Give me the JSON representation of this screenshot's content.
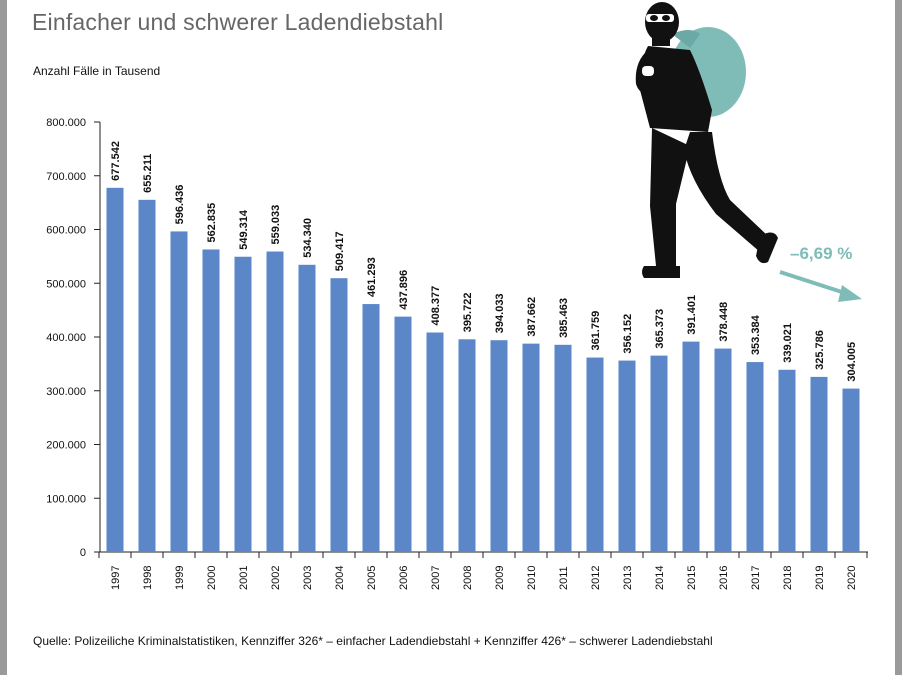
{
  "subtitle": "Einfacher und schwerer Ladendiebstahl",
  "source_note": "Quelle: Polizeiliche Kriminalstatistiken, Kennziffer 326* – einfacher Ladendiebstahl + Kennziffer 426* – schwerer Ladendiebstahl",
  "change_label": "–6,69 %",
  "colors": {
    "bar": "#5b87c9",
    "accent": "#7fbcb8",
    "thief": "#111111",
    "frame": "#9a9a9a"
  },
  "icons": {
    "illustration": "thief-with-sack-icon",
    "trend": "trend-arrow-icon"
  },
  "chart_data": {
    "type": "bar",
    "title": "Einfacher und schwerer Ladendiebstahl",
    "ylabel": "Anzahl Fälle in Tausend",
    "xlabel": "",
    "ylim": [
      0,
      800000
    ],
    "yticks": [
      0,
      100000,
      200000,
      300000,
      400000,
      500000,
      600000,
      700000,
      800000
    ],
    "ytick_labels": [
      "0",
      "100.000",
      "200.000",
      "300.000",
      "400.000",
      "500.000",
      "600.000",
      "700.000",
      "800.000"
    ],
    "categories": [
      "1997",
      "1998",
      "1999",
      "2000",
      "2001",
      "2002",
      "2003",
      "2004",
      "2005",
      "2006",
      "2007",
      "2008",
      "2009",
      "2010",
      "2011",
      "2012",
      "2013",
      "2014",
      "2015",
      "2016",
      "2017",
      "2018",
      "2019",
      "2020"
    ],
    "values": [
      677542,
      655211,
      596436,
      562835,
      549314,
      559033,
      534340,
      509417,
      461293,
      437896,
      408377,
      395722,
      394033,
      387662,
      385463,
      361759,
      356152,
      365373,
      391401,
      378448,
      353384,
      339021,
      325786,
      304005
    ],
    "value_labels": [
      "677.542",
      "655.211",
      "596.436",
      "562.835",
      "549.314",
      "559.033",
      "534.340",
      "509.417",
      "461.293",
      "437.896",
      "408.377",
      "395.722",
      "394.033",
      "387.662",
      "385.463",
      "361.759",
      "356.152",
      "365.373",
      "391.401",
      "378.448",
      "353.384",
      "339.021",
      "325.786",
      "304.005"
    ],
    "grid": false,
    "legend": "none",
    "annotation": "–6,69 %"
  }
}
